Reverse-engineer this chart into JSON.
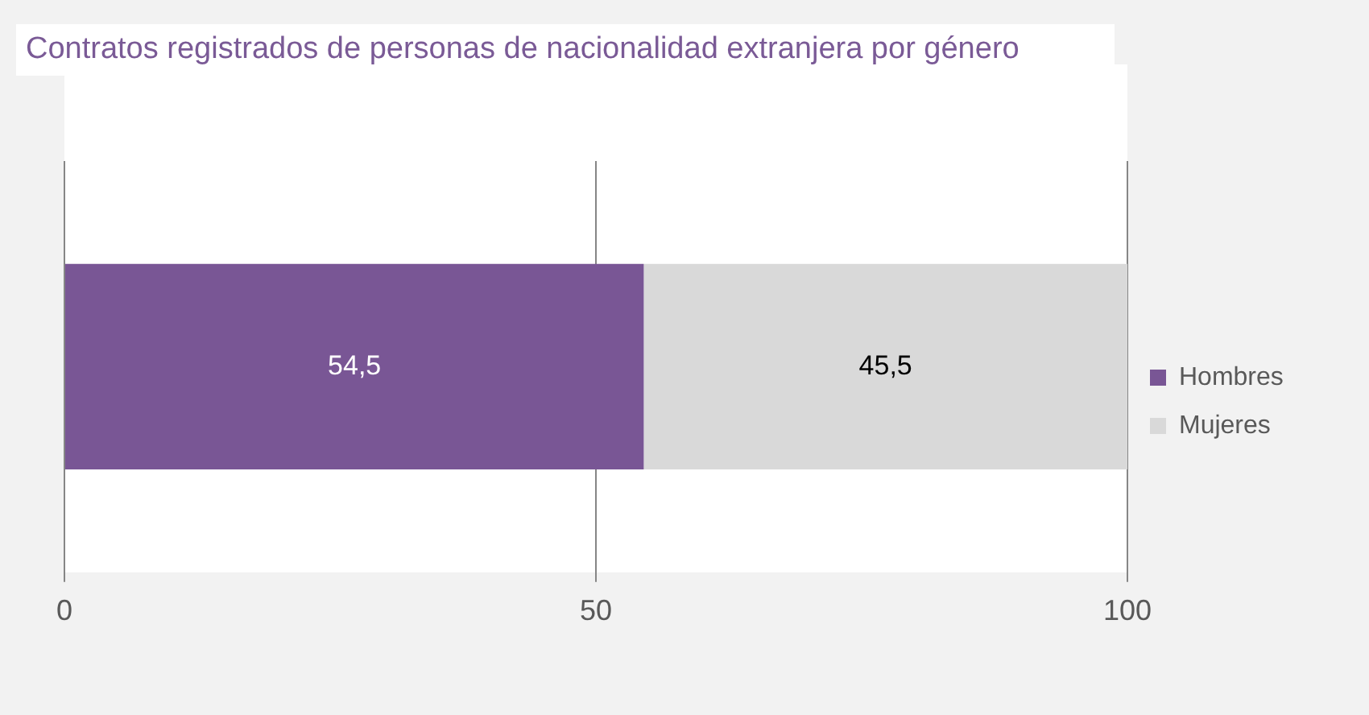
{
  "chart_data": {
    "type": "bar",
    "title": "Contratos registrados de personas de nacionalidad extranjera por género",
    "orientation": "horizontal",
    "stacked": true,
    "categories": [
      null
    ],
    "series": [
      {
        "name": "Hombres",
        "color": "#795695",
        "values": [
          54.5
        ],
        "value_labels": [
          "54,5"
        ]
      },
      {
        "name": "Mujeres",
        "color": "#d9d9d9",
        "values": [
          45.5
        ],
        "value_labels": [
          "45,5"
        ]
      }
    ],
    "xlim": [
      0,
      100
    ],
    "xticks": [
      0,
      50,
      100
    ],
    "grid": "x",
    "legend": "right"
  }
}
